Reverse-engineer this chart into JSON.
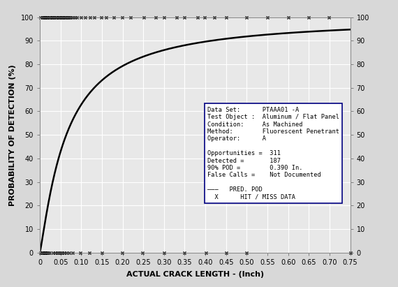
{
  "title": "",
  "xlabel": "ACTUAL CRACK LENGTH - (Inch)",
  "ylabel": "PROBABILITY OF DETECTION (%)",
  "xlim": [
    0,
    0.75
  ],
  "ylim": [
    0,
    100
  ],
  "xticks": [
    0,
    0.05,
    0.1,
    0.15,
    0.2,
    0.25,
    0.3,
    0.35,
    0.4,
    0.45,
    0.5,
    0.55,
    0.6,
    0.65,
    0.7,
    0.75
  ],
  "yticks": [
    0,
    10,
    20,
    30,
    40,
    50,
    60,
    70,
    80,
    90,
    100
  ],
  "xticklabels": [
    "0",
    "0.05",
    "0.10",
    "0.15",
    "0.20",
    "0.25",
    "0.30",
    "0.35",
    "0.40",
    "0.45",
    "0.50",
    "0.55",
    "0.60",
    "0.65",
    "0.70",
    "0.75"
  ],
  "yticklabels": [
    "0",
    "10",
    "20",
    "30",
    "40",
    "50",
    "60",
    "70",
    "80",
    "90",
    "100"
  ],
  "pod_mu_log": -2.75,
  "pod_sigma_log": 0.85,
  "info_box": {
    "dataset": "PTAAA01 -A",
    "test_object": "Aluminum / Flat Panel",
    "condition": "As Machined",
    "method": "Fluorescent Penetrant",
    "operator": "A",
    "opportunities": "311",
    "detected": "187",
    "pod_90": "0.390 In.",
    "false_calls": "Not Documented"
  },
  "scatter_x_top": [
    0.003,
    0.005,
    0.007,
    0.009,
    0.01,
    0.012,
    0.015,
    0.018,
    0.02,
    0.022,
    0.025,
    0.028,
    0.03,
    0.032,
    0.035,
    0.038,
    0.04,
    0.042,
    0.045,
    0.048,
    0.05,
    0.053,
    0.055,
    0.058,
    0.06,
    0.063,
    0.065,
    0.068,
    0.07,
    0.075,
    0.08,
    0.085,
    0.09,
    0.1,
    0.11,
    0.12,
    0.13,
    0.15,
    0.16,
    0.18,
    0.2,
    0.22,
    0.25,
    0.28,
    0.3,
    0.33,
    0.35,
    0.38,
    0.4,
    0.42,
    0.45,
    0.5,
    0.55,
    0.6,
    0.65,
    0.7
  ],
  "scatter_x_bot": [
    0.003,
    0.005,
    0.007,
    0.009,
    0.01,
    0.012,
    0.015,
    0.018,
    0.02,
    0.025,
    0.03,
    0.035,
    0.04,
    0.045,
    0.05,
    0.055,
    0.06,
    0.065,
    0.07,
    0.08,
    0.1,
    0.12,
    0.15,
    0.2,
    0.25,
    0.3,
    0.35,
    0.4,
    0.45,
    0.5,
    0.75
  ],
  "fig_facecolor": "#d8d8d8",
  "ax_facecolor": "#e8e8e8",
  "grid_color": "#ffffff",
  "curve_color": "#000000",
  "box_facecolor": "#ffffff",
  "box_edgecolor": "#000080"
}
